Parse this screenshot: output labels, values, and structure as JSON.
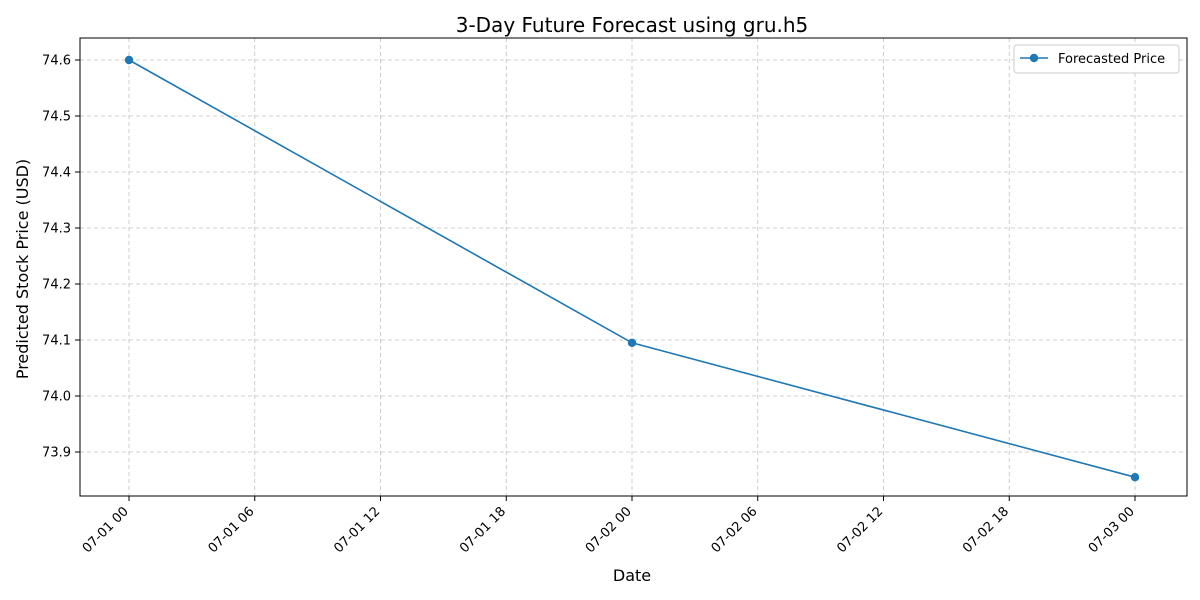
{
  "chart_data": {
    "type": "line",
    "title": "3-Day Future Forecast using gru.h5",
    "xlabel": "Date",
    "ylabel": "Predicted Stock Price (USD)",
    "x_tick_labels": [
      "07-01 00",
      "07-01 06",
      "07-01 12",
      "07-01 18",
      "07-02 00",
      "07-02 06",
      "07-02 12",
      "07-02 18",
      "07-03 00"
    ],
    "y_tick_labels": [
      "73.9",
      "74.0",
      "74.1",
      "74.2",
      "74.3",
      "74.4",
      "74.5",
      "74.6"
    ],
    "grid": true,
    "legend_position": "top-right",
    "series": [
      {
        "name": "Forecasted Price",
        "color": "#1f77b4",
        "marker": "circle",
        "points": [
          {
            "x": "07-01 00",
            "y": 74.6
          },
          {
            "x": "07-02 00",
            "y": 74.095
          },
          {
            "x": "07-03 00",
            "y": 73.855
          }
        ]
      }
    ]
  }
}
